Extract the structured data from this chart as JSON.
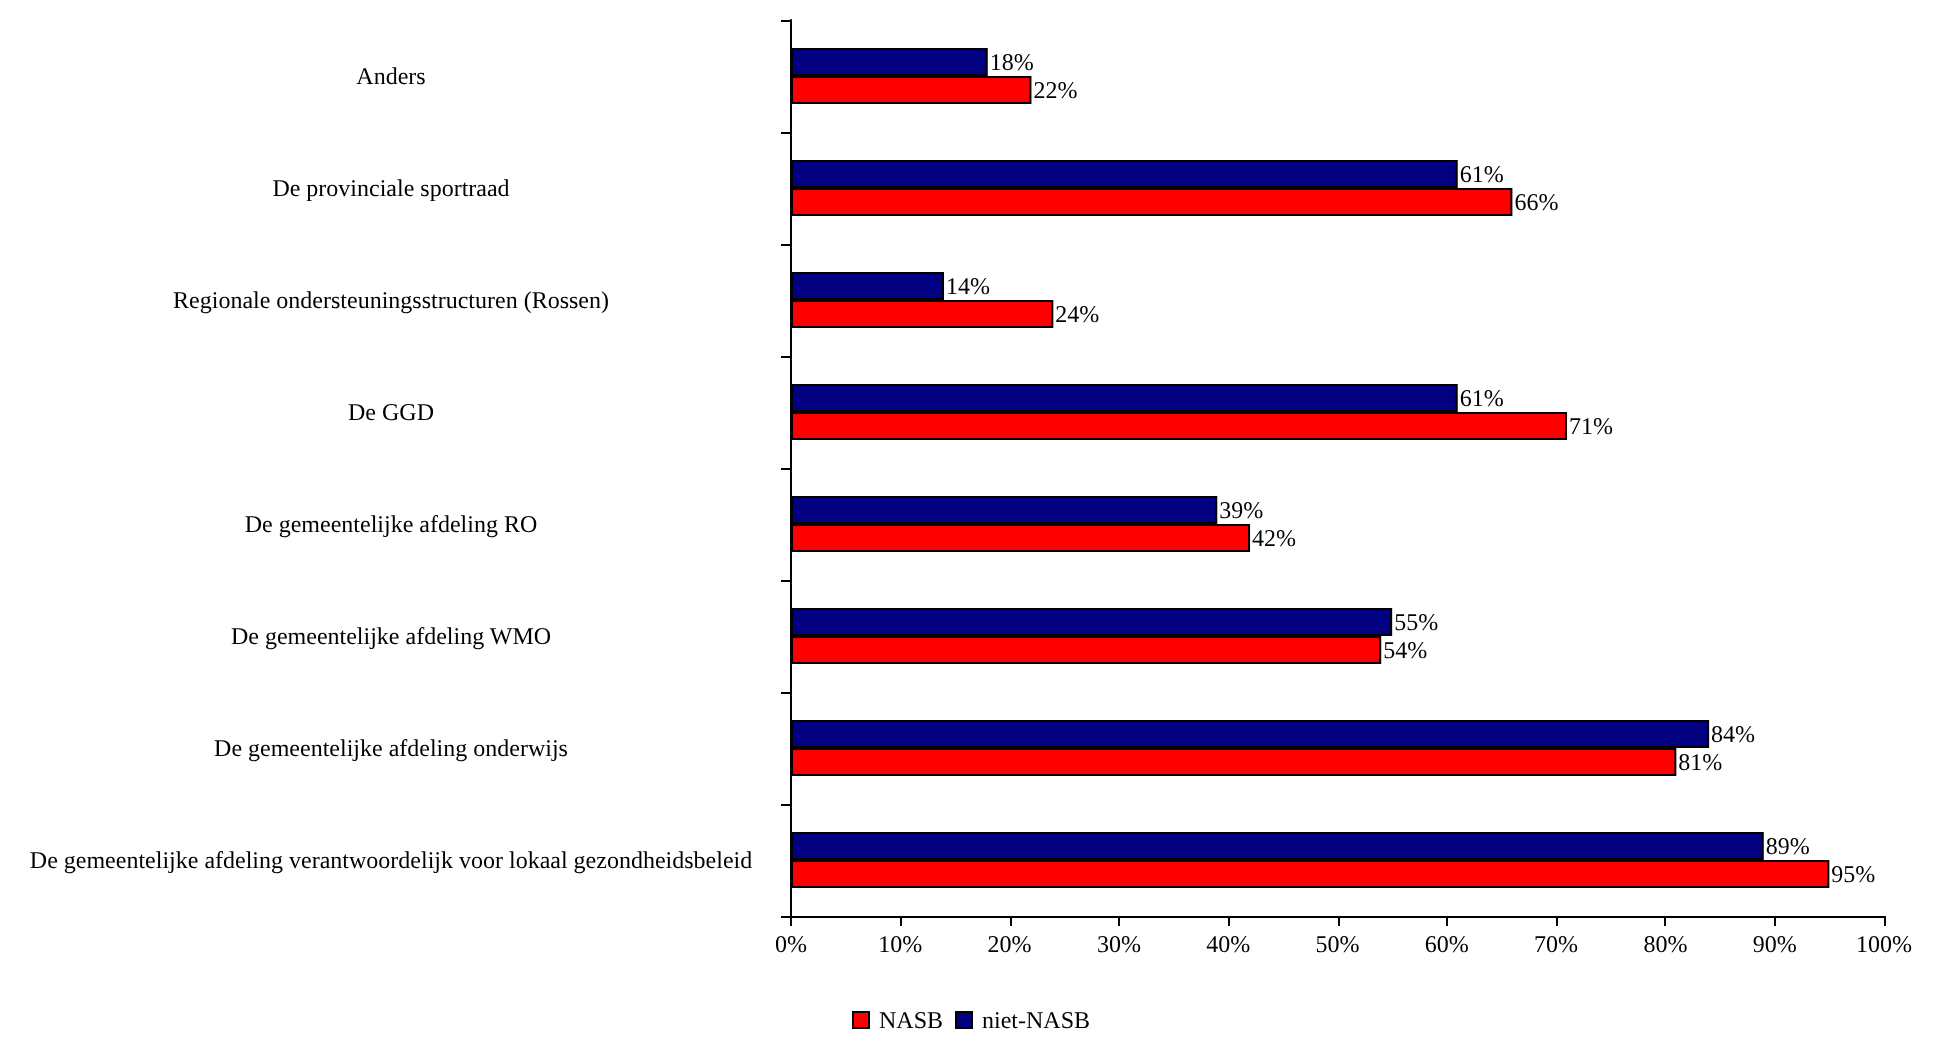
{
  "chart_data": {
    "type": "bar",
    "orientation": "horizontal",
    "legend": "bottom",
    "grid": false,
    "categories": [
      "Anders",
      "De provinciale sportraad",
      "Regionale ondersteuningsstructuren (Rossen)",
      "De GGD",
      "De gemeentelijke afdeling RO",
      "De gemeentelijke afdeling WMO",
      "De gemeentelijke afdeling onderwijs",
      "De gemeentelijke afdeling verantwoordelijk voor lokaal gezondheidsbeleid"
    ],
    "series": [
      {
        "name": "NASB",
        "color": "#ff0000",
        "values": [
          22,
          66,
          24,
          71,
          42,
          54,
          81,
          95
        ],
        "value_labels": [
          "22%",
          "66%",
          "24%",
          "71%",
          "42%",
          "54%",
          "81%",
          "95%"
        ]
      },
      {
        "name": "niet-NASB",
        "color": "#000080",
        "values": [
          18,
          61,
          14,
          61,
          39,
          55,
          84,
          89
        ],
        "value_labels": [
          "18%",
          "61%",
          "14%",
          "61%",
          "39%",
          "55%",
          "84%",
          "89%"
        ]
      }
    ],
    "xlim": [
      0,
      100
    ],
    "xticks": [
      {
        "value": 0,
        "label": "0%"
      },
      {
        "value": 10,
        "label": "10%"
      },
      {
        "value": 20,
        "label": "20%"
      },
      {
        "value": 30,
        "label": "30%"
      },
      {
        "value": 40,
        "label": "40%"
      },
      {
        "value": 50,
        "label": "50%"
      },
      {
        "value": 60,
        "label": "60%"
      },
      {
        "value": 70,
        "label": "70%"
      },
      {
        "value": 80,
        "label": "80%"
      },
      {
        "value": 90,
        "label": "90%"
      },
      {
        "value": 100,
        "label": "100%"
      }
    ]
  }
}
